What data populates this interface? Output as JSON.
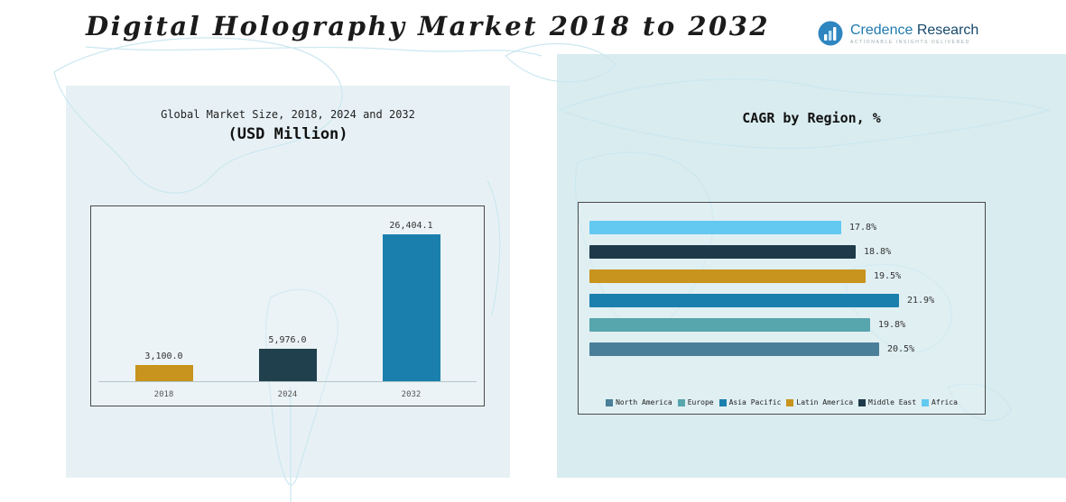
{
  "page": {
    "title": "Digital Holography Market 2018 to 2032"
  },
  "logo": {
    "name_part1": "Credence",
    "name_part2": " Research",
    "tagline": "Actionable Insights Delivered",
    "icon_color": "#2e86c1"
  },
  "chart_data": [
    {
      "type": "bar",
      "title": "Global Market Size, 2018, 2024 and 2032",
      "subtitle": "(USD Million)",
      "categories": [
        "2018",
        "2024",
        "2032"
      ],
      "values": [
        3100.0,
        5976.0,
        26404.1
      ],
      "value_labels": [
        "3,100.0",
        "5,976.0",
        "26,404.1"
      ],
      "colors": [
        "#c8941d",
        "#21404d",
        "#1b7fae"
      ],
      "ylim": [
        0,
        27000
      ],
      "grid": false,
      "legend_position": "none"
    },
    {
      "type": "bar",
      "orientation": "horizontal",
      "title": "CAGR by Region, %",
      "rows_top_to_bottom": [
        "Africa",
        "Middle East",
        "Latin America",
        "Asia Pacific",
        "Europe",
        "North America"
      ],
      "values": [
        17.8,
        18.8,
        19.5,
        21.9,
        19.8,
        20.5
      ],
      "value_labels": [
        "17.8%",
        "18.8%",
        "19.5%",
        "21.9%",
        "19.8%",
        "20.5%"
      ],
      "colors": [
        "#63c9f1",
        "#1e3a4a",
        "#c8941d",
        "#1b7fae",
        "#57a5ad",
        "#4a7f99"
      ],
      "xlim": [
        0,
        22
      ],
      "grid": false,
      "legend_position": "bottom",
      "legend": [
        {
          "label": "North America",
          "color": "#4a7f99"
        },
        {
          "label": "Europe",
          "color": "#57a5ad"
        },
        {
          "label": "Asia Pacific",
          "color": "#1b7fae"
        },
        {
          "label": "Latin America",
          "color": "#c8941d"
        },
        {
          "label": "Middle East",
          "color": "#1e3a4a"
        },
        {
          "label": "Africa",
          "color": "#63c9f1"
        }
      ]
    }
  ]
}
